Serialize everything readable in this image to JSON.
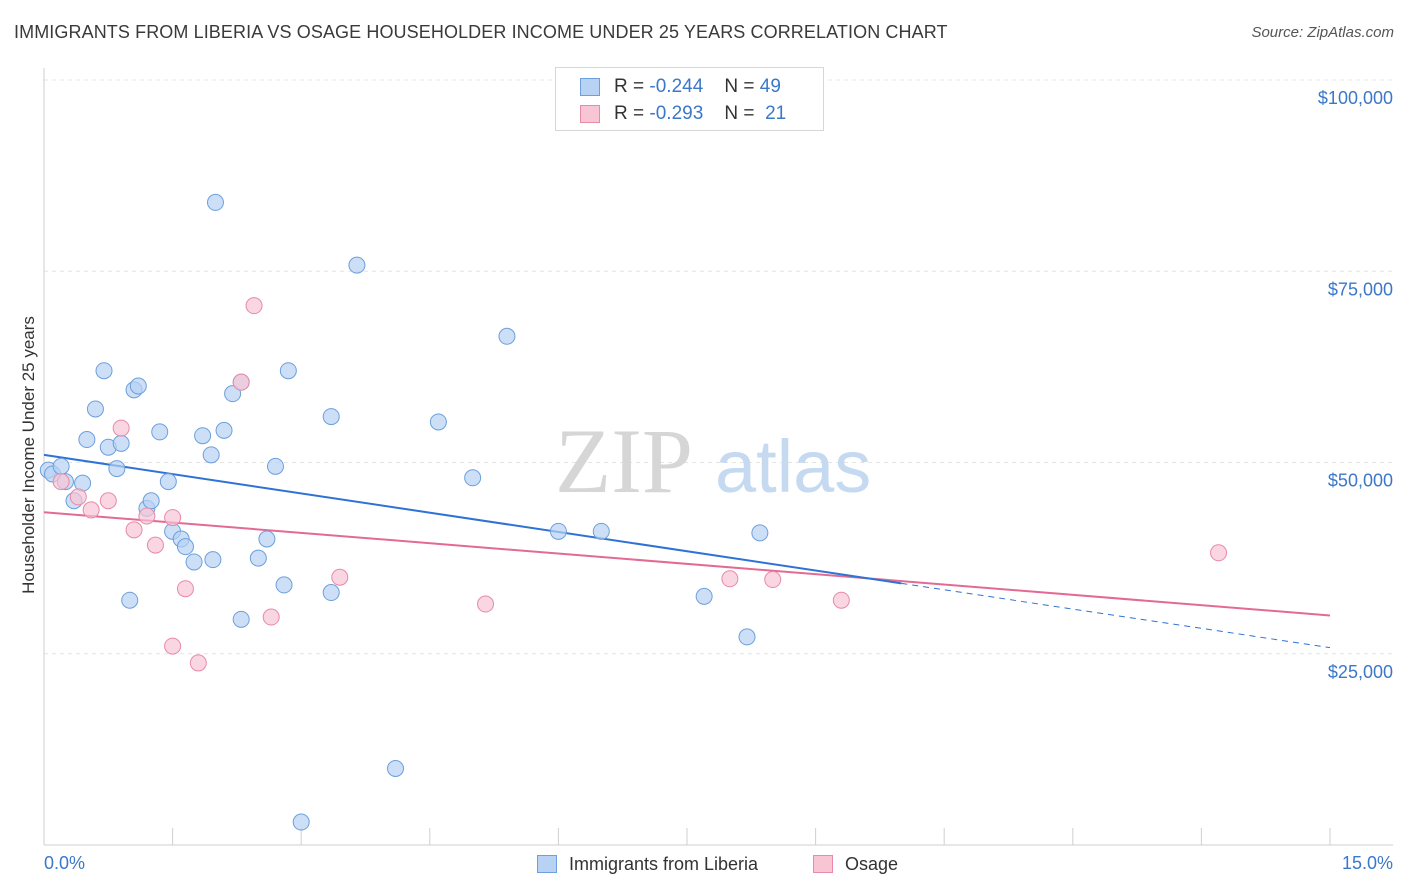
{
  "title": "IMMIGRANTS FROM LIBERIA VS OSAGE HOUSEHOLDER INCOME UNDER 25 YEARS CORRELATION CHART",
  "source": "Source: ZipAtlas.com",
  "watermark": {
    "zip": "ZIP",
    "atlas": "atlas"
  },
  "colors": {
    "blue_fill": "#b7d2f3",
    "blue_stroke": "#6c9fdc",
    "blue_line": "#2f72d6",
    "pink_fill": "#f7c5d4",
    "pink_stroke": "#e88aa8",
    "pink_line": "#e36a93",
    "accent": "#3b78c9"
  },
  "legend": {
    "rows": [
      {
        "r_label": "R =",
        "r_value": "-0.244",
        "n_label": "N =",
        "n_value": "49"
      },
      {
        "r_label": "R =",
        "r_value": "-0.293",
        "n_label": "N =",
        "n_value": "21"
      }
    ]
  },
  "bottom_legend": {
    "series1": "Immigrants from Liberia",
    "series2": "Osage"
  },
  "chart_data": {
    "type": "scatter",
    "xlabel": "",
    "ylabel": "Householder Income Under 25 years",
    "xlim": [
      0,
      15
    ],
    "ylim": [
      0,
      100000
    ],
    "x_tick_labels": [
      "0.0%",
      "15.0%"
    ],
    "y_ticks": [
      {
        "value": 100000,
        "label": "$100,000"
      },
      {
        "value": 75000,
        "label": "$75,000"
      },
      {
        "value": 50000,
        "label": "$50,000"
      },
      {
        "value": 25000,
        "label": "$25,000"
      }
    ],
    "series": [
      {
        "name": "Immigrants from Liberia",
        "points": [
          [
            0.05,
            49000
          ],
          [
            0.1,
            48500
          ],
          [
            0.2,
            49500
          ],
          [
            0.25,
            47500
          ],
          [
            0.35,
            45000
          ],
          [
            0.45,
            47300
          ],
          [
            0.5,
            53000
          ],
          [
            0.6,
            57000
          ],
          [
            0.7,
            62000
          ],
          [
            0.75,
            52000
          ],
          [
            0.85,
            49200
          ],
          [
            0.9,
            52500
          ],
          [
            1.0,
            32000
          ],
          [
            1.05,
            59500
          ],
          [
            1.1,
            60000
          ],
          [
            1.2,
            44000
          ],
          [
            1.25,
            45000
          ],
          [
            1.35,
            54000
          ],
          [
            1.45,
            47500
          ],
          [
            1.5,
            41000
          ],
          [
            1.6,
            40000
          ],
          [
            1.65,
            39000
          ],
          [
            1.75,
            37000
          ],
          [
            1.85,
            53500
          ],
          [
            1.95,
            51000
          ],
          [
            1.97,
            37300
          ],
          [
            2.0,
            84000
          ],
          [
            2.1,
            54200
          ],
          [
            2.2,
            59000
          ],
          [
            2.3,
            60500
          ],
          [
            2.3,
            29500
          ],
          [
            2.5,
            37500
          ],
          [
            2.6,
            40000
          ],
          [
            2.7,
            49500
          ],
          [
            2.8,
            34000
          ],
          [
            2.85,
            62000
          ],
          [
            3.0,
            3000
          ],
          [
            3.35,
            56000
          ],
          [
            3.35,
            33000
          ],
          [
            3.65,
            75800
          ],
          [
            4.1,
            10000
          ],
          [
            4.6,
            55300
          ],
          [
            5.0,
            48000
          ],
          [
            5.4,
            66500
          ],
          [
            6.0,
            41000
          ],
          [
            6.5,
            41000
          ],
          [
            7.7,
            32500
          ],
          [
            8.2,
            27200
          ],
          [
            8.35,
            40800
          ]
        ]
      },
      {
        "name": "Osage",
        "points": [
          [
            0.2,
            47500
          ],
          [
            0.4,
            45500
          ],
          [
            0.55,
            43800
          ],
          [
            0.75,
            45000
          ],
          [
            0.9,
            54500
          ],
          [
            1.05,
            41200
          ],
          [
            1.2,
            43000
          ],
          [
            1.3,
            39200
          ],
          [
            1.5,
            42800
          ],
          [
            1.5,
            26000
          ],
          [
            1.65,
            33500
          ],
          [
            1.8,
            23800
          ],
          [
            2.3,
            60500
          ],
          [
            2.45,
            70500
          ],
          [
            2.65,
            29800
          ],
          [
            3.45,
            35000
          ],
          [
            5.15,
            31500
          ],
          [
            8.0,
            34800
          ],
          [
            8.5,
            34700
          ],
          [
            9.3,
            32000
          ],
          [
            13.7,
            38200
          ]
        ]
      }
    ],
    "trendlines": [
      {
        "series": "Immigrants from Liberia",
        "x0": 0,
        "y0": 51000,
        "x1": 10,
        "y1": 34200,
        "dashed_to_x": 15,
        "dashed_to_y": 25800
      },
      {
        "series": "Osage",
        "x0": 0,
        "y0": 43500,
        "x1": 15,
        "y1": 30000
      }
    ]
  }
}
